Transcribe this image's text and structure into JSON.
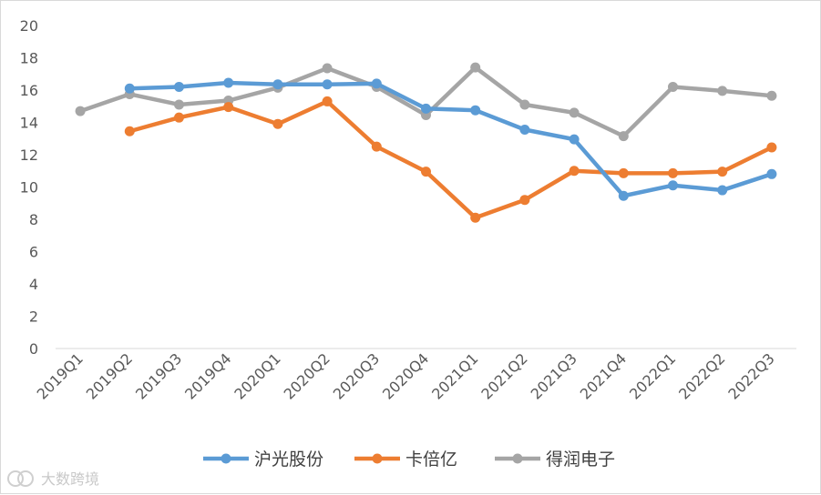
{
  "chart_data": {
    "type": "line",
    "categories": [
      "2019Q1",
      "2019Q2",
      "2019Q3",
      "2019Q4",
      "2020Q1",
      "2020Q2",
      "2020Q3",
      "2020Q4",
      "2021Q1",
      "2021Q2",
      "2021Q3",
      "2021Q4",
      "2022Q1",
      "2022Q2",
      "2022Q3"
    ],
    "series": [
      {
        "name": "沪光股份",
        "color": "#5b9bd5",
        "values": [
          null,
          16.1,
          16.2,
          16.45,
          16.35,
          16.35,
          16.4,
          14.85,
          14.75,
          13.55,
          12.95,
          9.45,
          10.1,
          9.8,
          10.8
        ]
      },
      {
        "name": "卡倍亿",
        "color": "#ed7d31",
        "values": [
          null,
          13.45,
          14.3,
          14.95,
          13.9,
          15.3,
          12.5,
          10.95,
          8.1,
          9.2,
          11.0,
          10.85,
          10.85,
          10.95,
          12.45
        ]
      },
      {
        "name": "得润电子",
        "color": "#a5a5a5",
        "values": [
          14.7,
          15.75,
          15.1,
          15.35,
          16.15,
          17.35,
          16.2,
          14.45,
          17.4,
          15.1,
          14.6,
          13.15,
          16.2,
          15.95,
          15.65
        ]
      }
    ],
    "y_ticks": [
      "0",
      "2",
      "4",
      "6",
      "8",
      "10",
      "12",
      "14",
      "16",
      "18",
      "20"
    ],
    "ylim": [
      0,
      20
    ],
    "grid": false,
    "legend_position": "bottom",
    "title": "",
    "xlabel": "",
    "ylabel": ""
  },
  "watermark": {
    "text": "大数跨境",
    "icon": "brand-logo-icon"
  }
}
